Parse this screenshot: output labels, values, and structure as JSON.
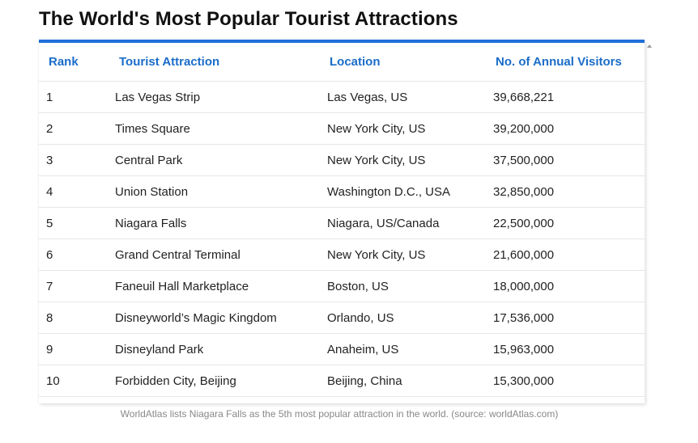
{
  "page": {
    "title": "The World's Most Popular Tourist Attractions",
    "caption": "WorldAtlas lists Niagara Falls as the 5th most popular attraction in the world. (source: worldAtlas.com)"
  },
  "table": {
    "columns": [
      "Rank",
      "Tourist Attraction",
      "Location",
      "No. of Annual Visitors"
    ],
    "rows": [
      [
        "1",
        "Las Vegas Strip",
        "Las Vegas, US",
        "39,668,221"
      ],
      [
        "2",
        "Times Square",
        "New York City, US",
        "39,200,000"
      ],
      [
        "3",
        "Central Park",
        "New York City, US",
        "37,500,000"
      ],
      [
        "4",
        "Union Station",
        "Washington D.C., USA",
        "32,850,000"
      ],
      [
        "5",
        "Niagara Falls",
        "Niagara, US/Canada",
        "22,500,000"
      ],
      [
        "6",
        "Grand Central Terminal",
        "New York City, US",
        "21,600,000"
      ],
      [
        "7",
        "Faneuil Hall Marketplace",
        "Boston, US",
        "18,000,000"
      ],
      [
        "8",
        "Disneyworld’s Magic Kingdom",
        "Orlando, US",
        "17,536,000"
      ],
      [
        "9",
        "Disneyland Park",
        "Anaheim, US",
        "15,963,000"
      ],
      [
        "10",
        "Forbidden City, Beijing",
        "Beijing, China",
        "15,300,000"
      ]
    ]
  },
  "colors": {
    "accent": "#1e6fd9",
    "header_text": "#1a6dc9"
  }
}
